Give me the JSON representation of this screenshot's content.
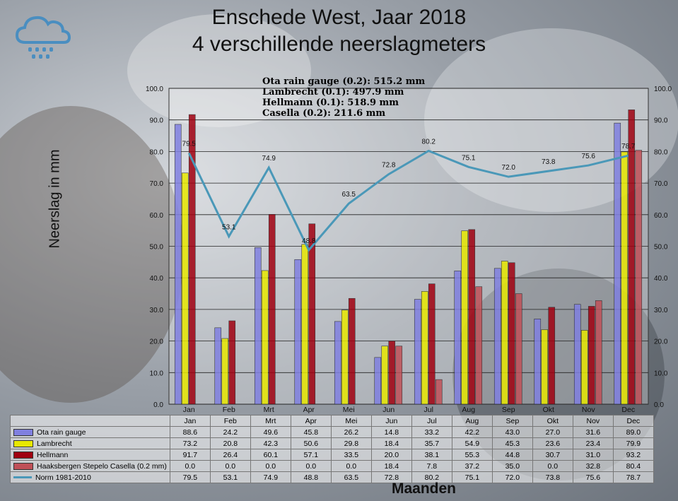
{
  "title_line1": "Enschede West, Jaar 2018",
  "title_line2": "4 verschillende neerslagmeters",
  "totals": [
    "Ota rain gauge (0.2): 515.2 mm",
    "Lambrecht (0.1): 497.9 mm",
    "Hellmann (0.1): 518.9 mm",
    "Casella (0.2): 211.6 mm"
  ],
  "icon": "rain-cloud-icon",
  "chart_data": {
    "type": "bar",
    "xlabel": "Maanden",
    "ylabel": "Neerslag in mm",
    "ylim": [
      0,
      100
    ],
    "yticks": [
      "0.0",
      "10.0",
      "20.0",
      "30.0",
      "40.0",
      "50.0",
      "60.0",
      "70.0",
      "80.0",
      "90.0",
      "100.0"
    ],
    "grid": true,
    "legend": "data-table",
    "categories": [
      "Jan",
      "Feb",
      "Mrt",
      "Apr",
      "Mei",
      "Jun",
      "Jul",
      "Aug",
      "Sep",
      "Okt",
      "Nov",
      "Dec"
    ],
    "series": [
      {
        "name": "Ota rain gauge",
        "kind": "bar",
        "color": "#8080e0",
        "values": [
          88.6,
          24.2,
          49.6,
          45.8,
          26.2,
          14.8,
          33.2,
          42.2,
          43.0,
          27.0,
          31.6,
          89.0
        ],
        "labels": [
          "88.6",
          "24.2",
          "49.6",
          "45.8",
          "26.2",
          "14.8",
          "33.2",
          "42.2",
          "43.0",
          "27.0",
          "31.6",
          "89.0"
        ]
      },
      {
        "name": "Lambrecht",
        "kind": "bar",
        "color": "#e8e800",
        "values": [
          73.2,
          20.8,
          42.3,
          50.6,
          29.8,
          18.4,
          35.7,
          54.9,
          45.3,
          23.6,
          23.4,
          79.9
        ],
        "labels": [
          "73.2",
          "20.8",
          "42.3",
          "50.6",
          "29.8",
          "18.4",
          "35.7",
          "54.9",
          "45.3",
          "23.6",
          "23.4",
          "79.9"
        ]
      },
      {
        "name": "Hellmann",
        "kind": "bar",
        "color": "#a00010",
        "values": [
          91.7,
          26.4,
          60.1,
          57.1,
          33.5,
          20.0,
          38.1,
          55.3,
          44.8,
          30.7,
          31.0,
          93.2
        ],
        "labels": [
          "91.7",
          "26.4",
          "60.1",
          "57.1",
          "33.5",
          "20.0",
          "38.1",
          "55.3",
          "44.8",
          "30.7",
          "31.0",
          "93.2"
        ]
      },
      {
        "name": "Haaksbergen Stepelo Casella (0.2 mm)",
        "kind": "bar",
        "color": "#c05058",
        "values": [
          0.0,
          0.0,
          0.0,
          0.0,
          0.0,
          18.4,
          7.8,
          37.2,
          35.0,
          0.0,
          32.8,
          80.4
        ],
        "labels": [
          "0.0",
          "0.0",
          "0.0",
          "0.0",
          "0.0",
          "18.4",
          "7.8",
          "37.2",
          "35.0",
          "0.0",
          "32.8",
          "80.4"
        ]
      },
      {
        "name": "Norm 1981-2010",
        "kind": "line",
        "color": "#4a98b8",
        "values": [
          79.5,
          53.1,
          74.9,
          48.8,
          63.5,
          72.8,
          80.2,
          75.1,
          72.0,
          73.8,
          75.6,
          78.7
        ],
        "labels": [
          "79.5",
          "53.1",
          "74.9",
          "48.8",
          "63.5",
          "72.8",
          "80.2",
          "75.1",
          "72.0",
          "73.8",
          "75.6",
          "78.7"
        ]
      }
    ]
  }
}
